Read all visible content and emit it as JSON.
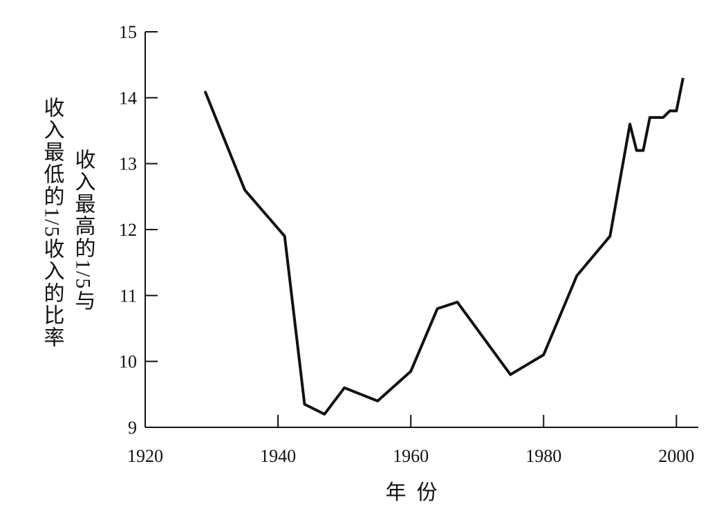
{
  "chart_data": {
    "type": "line",
    "ylabel": [
      "收入最高的1/5与",
      "收入最低的1/5收入的比率"
    ],
    "xlabel": "年  份",
    "x": [
      1929,
      1935,
      1941,
      1944,
      1947,
      1950,
      1955,
      1960,
      1964,
      1967,
      1975,
      1980,
      1985,
      1990,
      1993,
      1994,
      1995,
      1996,
      1998,
      1999,
      2000,
      2001
    ],
    "values": [
      14.1,
      12.6,
      11.9,
      9.35,
      9.2,
      9.6,
      9.4,
      9.85,
      10.8,
      10.9,
      9.8,
      10.1,
      11.3,
      11.9,
      13.6,
      13.2,
      13.2,
      13.7,
      13.7,
      13.8,
      13.8,
      14.3
    ],
    "color": "#111111",
    "xlim": [
      1920,
      2003.3
    ],
    "ylim": [
      9,
      15
    ],
    "xticks": [
      1920,
      1940,
      1960,
      1980,
      2000
    ],
    "yticks": [
      9,
      10,
      11,
      12,
      13,
      14,
      15
    ]
  }
}
